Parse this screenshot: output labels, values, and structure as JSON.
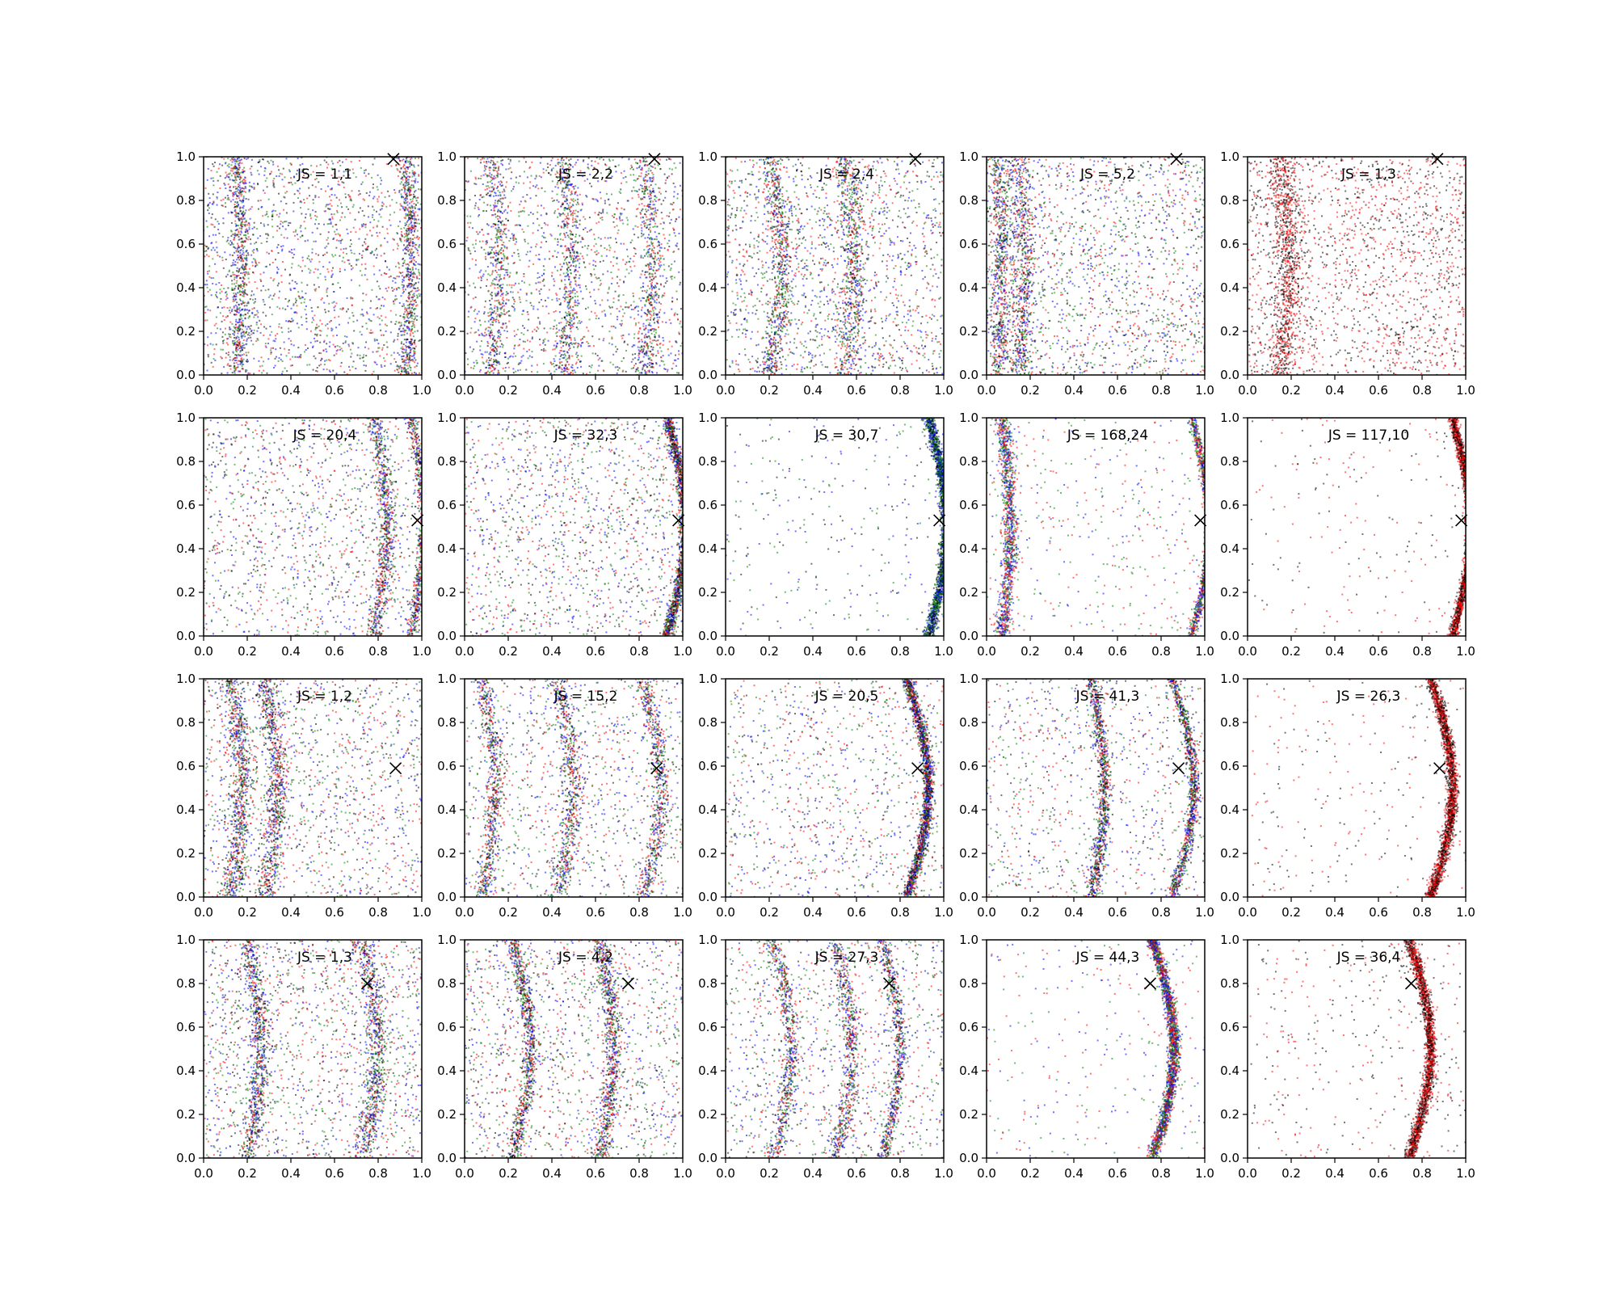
{
  "chart_data": {
    "type": "scatter",
    "layout": {
      "rows": 4,
      "cols": 5
    },
    "xlim": [
      0.0,
      1.0
    ],
    "ylim": [
      0.0,
      1.0
    ],
    "xticks": [
      "0.0",
      "0.2",
      "0.4",
      "0.6",
      "0.8",
      "1.0"
    ],
    "yticks": [
      "0.0",
      "0.2",
      "0.4",
      "0.6",
      "0.8",
      "1.0"
    ],
    "label_prefix": "JS = ",
    "point_colors": {
      "red": "#ff0000",
      "green": "#008000",
      "blue": "#0000ff",
      "black": "#000000"
    },
    "panels": [
      {
        "label": "1,1",
        "marker": [
          0.87,
          0.99
        ],
        "colors": [
          "red",
          "green",
          "blue",
          "black"
        ],
        "bands": [
          {
            "x": 0.15,
            "w": 0.05,
            "amp": 0.01
          },
          {
            "x": 0.93,
            "w": 0.04,
            "amp": 0.01
          }
        ],
        "background": 0.55,
        "n": 3000
      },
      {
        "label": "2,2",
        "marker": [
          0.87,
          0.99
        ],
        "colors": [
          "red",
          "green",
          "blue",
          "black"
        ],
        "bands": [
          {
            "x": 0.12,
            "w": 0.05,
            "amp": 0.02
          },
          {
            "x": 0.45,
            "w": 0.05,
            "amp": 0.02
          },
          {
            "x": 0.82,
            "w": 0.05,
            "amp": 0.02
          }
        ],
        "background": 0.5,
        "n": 3000
      },
      {
        "label": "2,4",
        "marker": [
          0.87,
          0.99
        ],
        "colors": [
          "red",
          "green",
          "blue",
          "black"
        ],
        "bands": [
          {
            "x": 0.2,
            "w": 0.05,
            "amp": 0.03
          },
          {
            "x": 0.55,
            "w": 0.06,
            "amp": 0.02
          }
        ],
        "background": 0.55,
        "n": 3000
      },
      {
        "label": "5,2",
        "marker": [
          0.87,
          0.99
        ],
        "colors": [
          "red",
          "green",
          "blue",
          "black"
        ],
        "bands": [
          {
            "x": 0.05,
            "w": 0.05,
            "amp": 0.01
          },
          {
            "x": 0.15,
            "w": 0.05,
            "amp": 0.01
          }
        ],
        "background": 0.55,
        "n": 3000
      },
      {
        "label": "1,3",
        "marker": [
          0.87,
          0.99
        ],
        "colors": [
          "red",
          "black"
        ],
        "bands": [
          {
            "x": 0.15,
            "w": 0.06,
            "amp": 0.02
          }
        ],
        "background": 0.65,
        "n": 2600
      },
      {
        "label": "20,4",
        "marker": [
          0.98,
          0.53
        ],
        "colors": [
          "red",
          "green",
          "blue",
          "black"
        ],
        "bands": [
          {
            "x": 0.95,
            "w": 0.025,
            "amp": 0.03
          },
          {
            "x": 0.78,
            "w": 0.04,
            "amp": 0.03
          }
        ],
        "background": 0.45,
        "n": 2800
      },
      {
        "label": "32,3",
        "marker": [
          0.98,
          0.53
        ],
        "colors": [
          "red",
          "green",
          "blue",
          "black"
        ],
        "bands": [
          {
            "x": 0.93,
            "w": 0.025,
            "amp": 0.04
          }
        ],
        "background": 0.45,
        "n": 3000
      },
      {
        "label": "30,7",
        "marker": [
          0.98,
          0.53
        ],
        "colors": [
          "green",
          "blue",
          "black"
        ],
        "bands": [
          {
            "x": 0.93,
            "w": 0.025,
            "amp": 0.04
          }
        ],
        "background": 0.12,
        "n": 2400
      },
      {
        "label": "168,24",
        "marker": [
          0.98,
          0.53
        ],
        "colors": [
          "red",
          "green",
          "blue"
        ],
        "bands": [
          {
            "x": 0.94,
            "w": 0.02,
            "amp": 0.04
          },
          {
            "x": 0.07,
            "w": 0.035,
            "amp": 0.02
          }
        ],
        "background": 0.15,
        "n": 2800
      },
      {
        "label": "117,10",
        "marker": [
          0.98,
          0.53
        ],
        "colors": [
          "red",
          "black"
        ],
        "bands": [
          {
            "x": 0.94,
            "w": 0.02,
            "amp": 0.04
          }
        ],
        "background": 0.08,
        "n": 2400
      },
      {
        "label": "1,2",
        "marker": [
          0.88,
          0.59
        ],
        "colors": [
          "red",
          "green",
          "blue",
          "black"
        ],
        "bands": [
          {
            "x": 0.12,
            "w": 0.05,
            "amp": 0.03
          },
          {
            "x": 0.28,
            "w": 0.05,
            "amp": 0.03
          }
        ],
        "background": 0.45,
        "n": 3000
      },
      {
        "label": "15,2",
        "marker": [
          0.88,
          0.59
        ],
        "colors": [
          "red",
          "green",
          "blue",
          "black"
        ],
        "bands": [
          {
            "x": 0.08,
            "w": 0.04,
            "amp": 0.03
          },
          {
            "x": 0.42,
            "w": 0.05,
            "amp": 0.04
          },
          {
            "x": 0.82,
            "w": 0.04,
            "amp": 0.04
          }
        ],
        "background": 0.35,
        "n": 3000
      },
      {
        "label": "20,5",
        "marker": [
          0.88,
          0.59
        ],
        "colors": [
          "red",
          "green",
          "blue",
          "black"
        ],
        "bands": [
          {
            "x": 0.83,
            "w": 0.025,
            "amp": 0.05
          }
        ],
        "background": 0.35,
        "n": 2800
      },
      {
        "label": "41,3",
        "marker": [
          0.88,
          0.59
        ],
        "colors": [
          "red",
          "green",
          "blue",
          "black"
        ],
        "bands": [
          {
            "x": 0.85,
            "w": 0.025,
            "amp": 0.05
          },
          {
            "x": 0.48,
            "w": 0.03,
            "amp": 0.03
          }
        ],
        "background": 0.3,
        "n": 2800
      },
      {
        "label": "26,3",
        "marker": [
          0.88,
          0.59
        ],
        "colors": [
          "red",
          "black"
        ],
        "bands": [
          {
            "x": 0.84,
            "w": 0.025,
            "amp": 0.05
          }
        ],
        "background": 0.1,
        "n": 2400
      },
      {
        "label": "1,3",
        "marker": [
          0.75,
          0.8
        ],
        "colors": [
          "red",
          "green",
          "blue",
          "black"
        ],
        "bands": [
          {
            "x": 0.2,
            "w": 0.04,
            "amp": 0.03
          },
          {
            "x": 0.72,
            "w": 0.05,
            "amp": 0.04
          }
        ],
        "background": 0.5,
        "n": 3000
      },
      {
        "label": "4,2",
        "marker": [
          0.75,
          0.8
        ],
        "colors": [
          "red",
          "green",
          "blue",
          "black"
        ],
        "bands": [
          {
            "x": 0.22,
            "w": 0.035,
            "amp": 0.04
          },
          {
            "x": 0.62,
            "w": 0.04,
            "amp": 0.03
          }
        ],
        "background": 0.45,
        "n": 3000
      },
      {
        "label": "27,3",
        "marker": [
          0.75,
          0.8
        ],
        "colors": [
          "red",
          "green",
          "blue",
          "black"
        ],
        "bands": [
          {
            "x": 0.22,
            "w": 0.04,
            "amp": 0.04
          },
          {
            "x": 0.5,
            "w": 0.04,
            "amp": 0.04
          },
          {
            "x": 0.72,
            "w": 0.03,
            "amp": 0.04
          }
        ],
        "background": 0.35,
        "n": 3000
      },
      {
        "label": "44,3",
        "marker": [
          0.75,
          0.8
        ],
        "colors": [
          "red",
          "green",
          "blue"
        ],
        "bands": [
          {
            "x": 0.76,
            "w": 0.025,
            "amp": 0.05
          }
        ],
        "background": 0.12,
        "n": 2400
      },
      {
        "label": "36,4",
        "marker": [
          0.75,
          0.8
        ],
        "colors": [
          "red",
          "black"
        ],
        "bands": [
          {
            "x": 0.74,
            "w": 0.025,
            "amp": 0.05
          }
        ],
        "background": 0.15,
        "n": 2400
      }
    ]
  }
}
